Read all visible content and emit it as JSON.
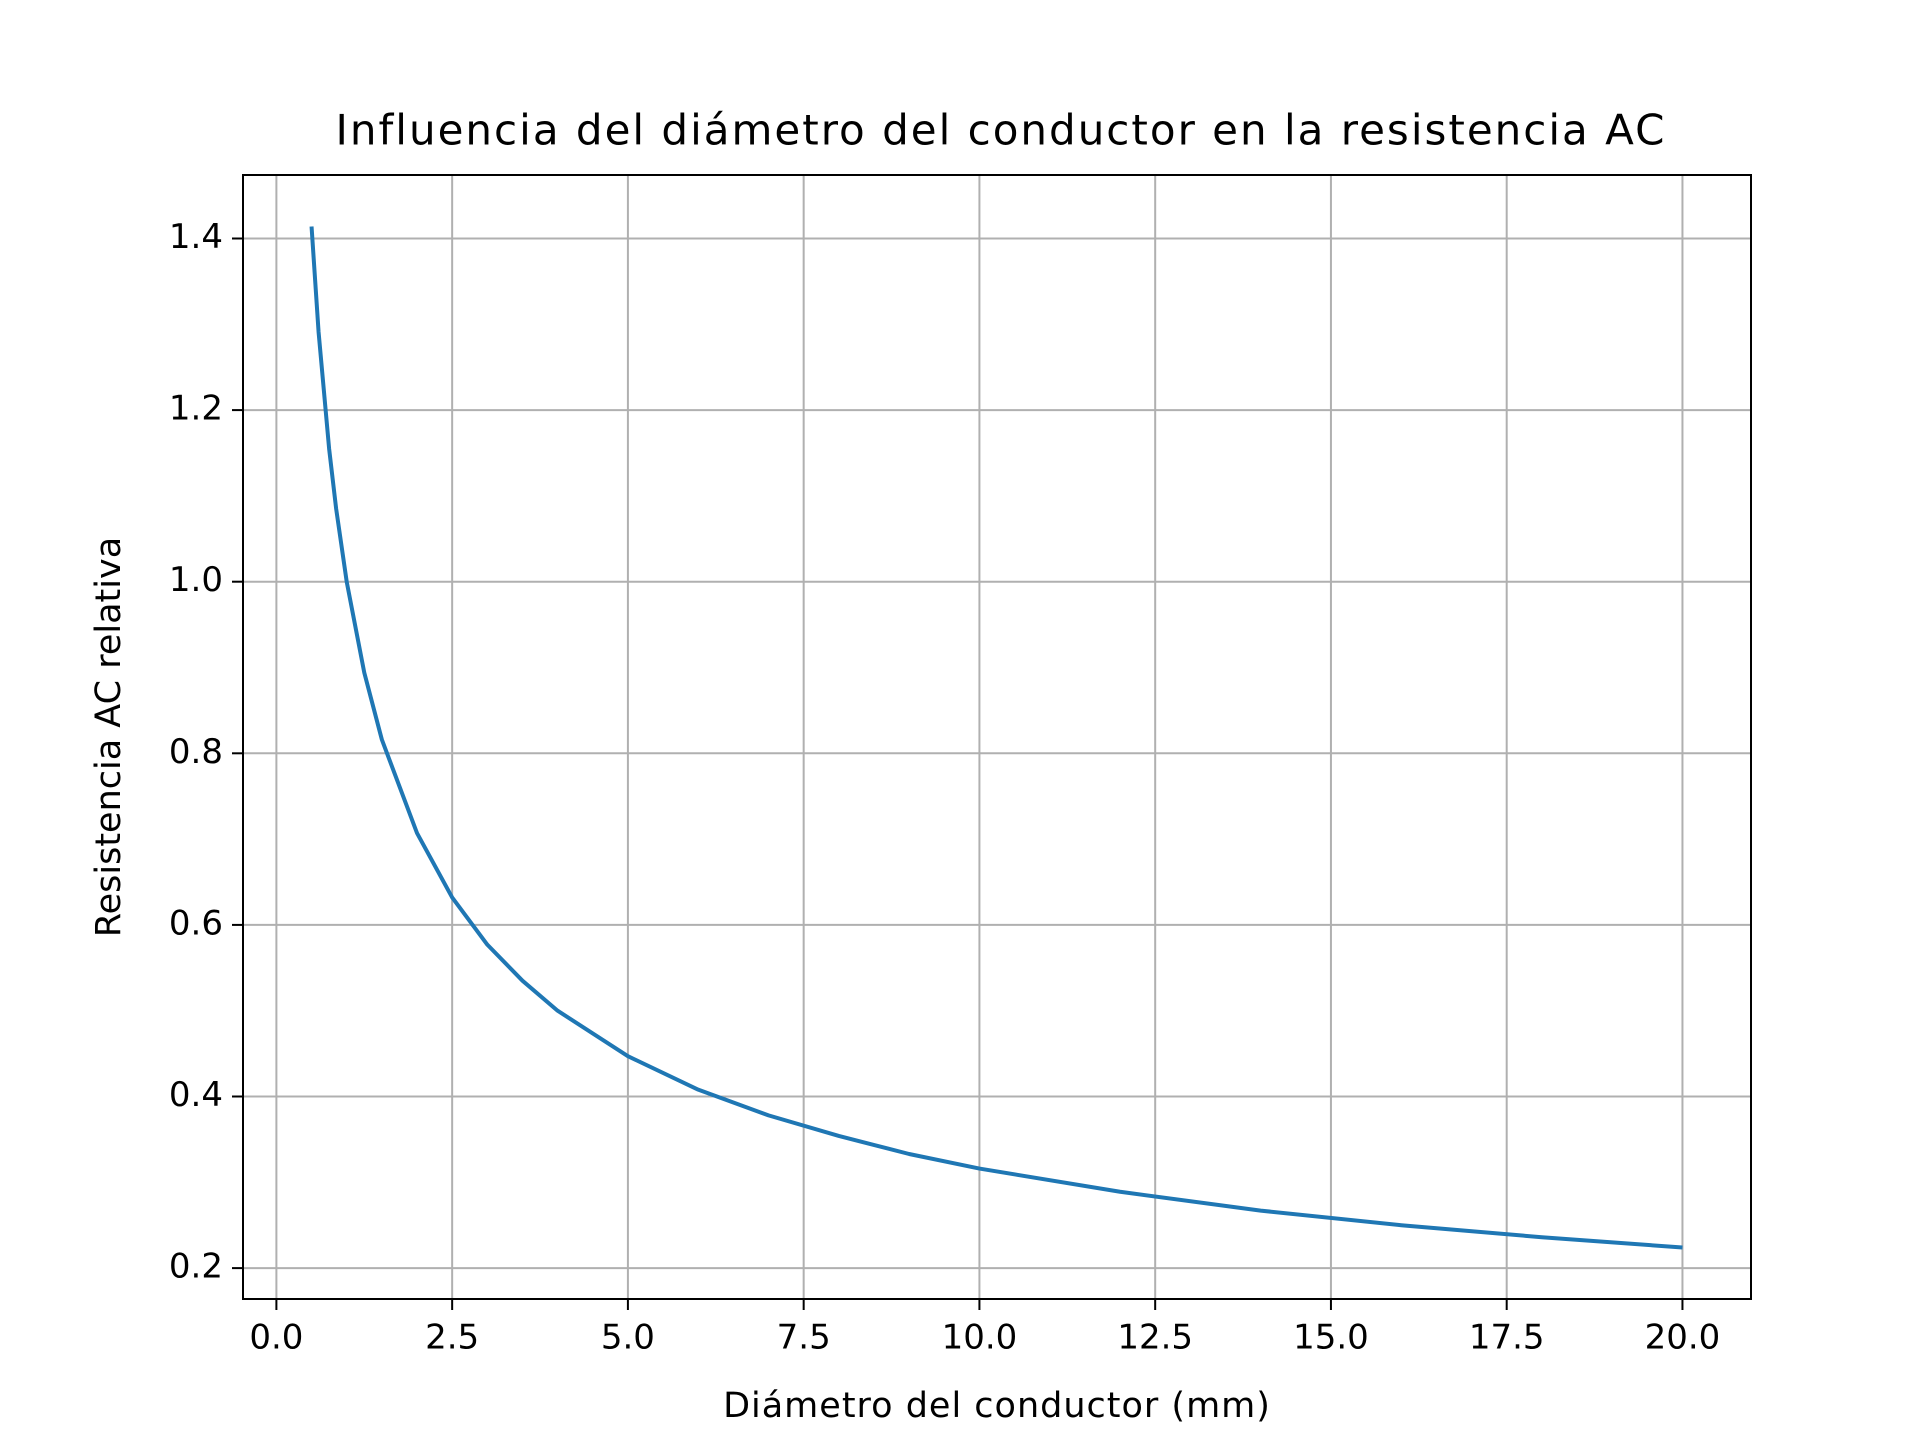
{
  "chart_data": {
    "type": "line",
    "title": "Influencia del diámetro del conductor en la resistencia AC",
    "x_label": "Diámetro del conductor (mm)",
    "y_label": "Resistencia AC relativa",
    "x": [
      0.5,
      0.6,
      0.75,
      0.85,
      1,
      1.25,
      1.5,
      2,
      2.5,
      3,
      3.5,
      4,
      5,
      6,
      7,
      8,
      9,
      10,
      12,
      14,
      16,
      18,
      20
    ],
    "series": [
      {
        "name": "Resistencia AC relativa",
        "color": "#1f77b4",
        "values": [
          1.414,
          1.291,
          1.155,
          1.085,
          1.0,
          0.894,
          0.816,
          0.707,
          0.632,
          0.577,
          0.535,
          0.5,
          0.447,
          0.408,
          0.378,
          0.354,
          0.333,
          0.316,
          0.289,
          0.267,
          0.25,
          0.236,
          0.224
        ]
      }
    ],
    "xlim": [
      -0.475,
      20.975
    ],
    "ylim": [
      0.164,
      1.474
    ],
    "xticks": [
      {
        "value": 0,
        "label": "0.0"
      },
      2.5,
      {
        "value": 5,
        "label": "5.0"
      },
      7.5,
      {
        "value": 10,
        "label": "10.0"
      },
      12.5,
      {
        "value": 15,
        "label": "15.0"
      },
      17.5,
      {
        "value": 20,
        "label": "20.0"
      }
    ],
    "yticks": [
      0.2,
      0.4,
      0.6,
      0.8,
      {
        "value": 1,
        "label": "1.0"
      },
      1.2,
      1.4
    ],
    "grid": true
  }
}
